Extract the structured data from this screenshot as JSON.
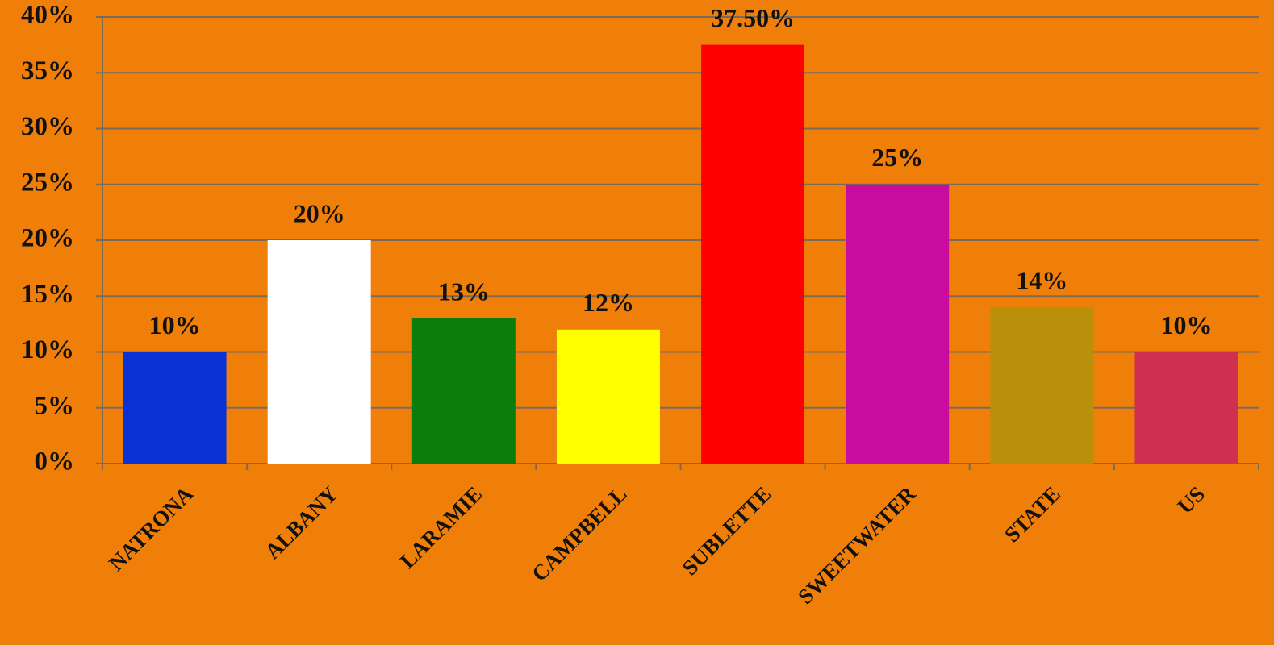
{
  "chart_data": {
    "type": "bar",
    "categories": [
      "NATRONA",
      "ALBANY",
      "LARAMIE",
      "CAMPBELL",
      "SUBLETTE",
      "SWEETWATER",
      "STATE",
      "US"
    ],
    "values": [
      10,
      20,
      13,
      12,
      37.5,
      25,
      14,
      10
    ],
    "value_labels": [
      "10%",
      "20%",
      "13%",
      "12%",
      "37.50%",
      "25%",
      "14%",
      "10%"
    ],
    "colors": [
      "#0a32d2",
      "#ffffff",
      "#0a7d0a",
      "#ffff00",
      "#ff0000",
      "#c80ca0",
      "#b8900a",
      "#d03050"
    ],
    "ylim": [
      0,
      40
    ],
    "yticks": [
      {
        "value": 0,
        "label": "0%"
      },
      {
        "value": 5,
        "label": "5%"
      },
      {
        "value": 10,
        "label": "10%"
      },
      {
        "value": 15,
        "label": "15%"
      },
      {
        "value": 20,
        "label": "20%"
      },
      {
        "value": 25,
        "label": "25%"
      },
      {
        "value": 30,
        "label": "30%"
      },
      {
        "value": 35,
        "label": "35%"
      },
      {
        "value": 40,
        "label": "40%"
      }
    ],
    "grid": true
  }
}
